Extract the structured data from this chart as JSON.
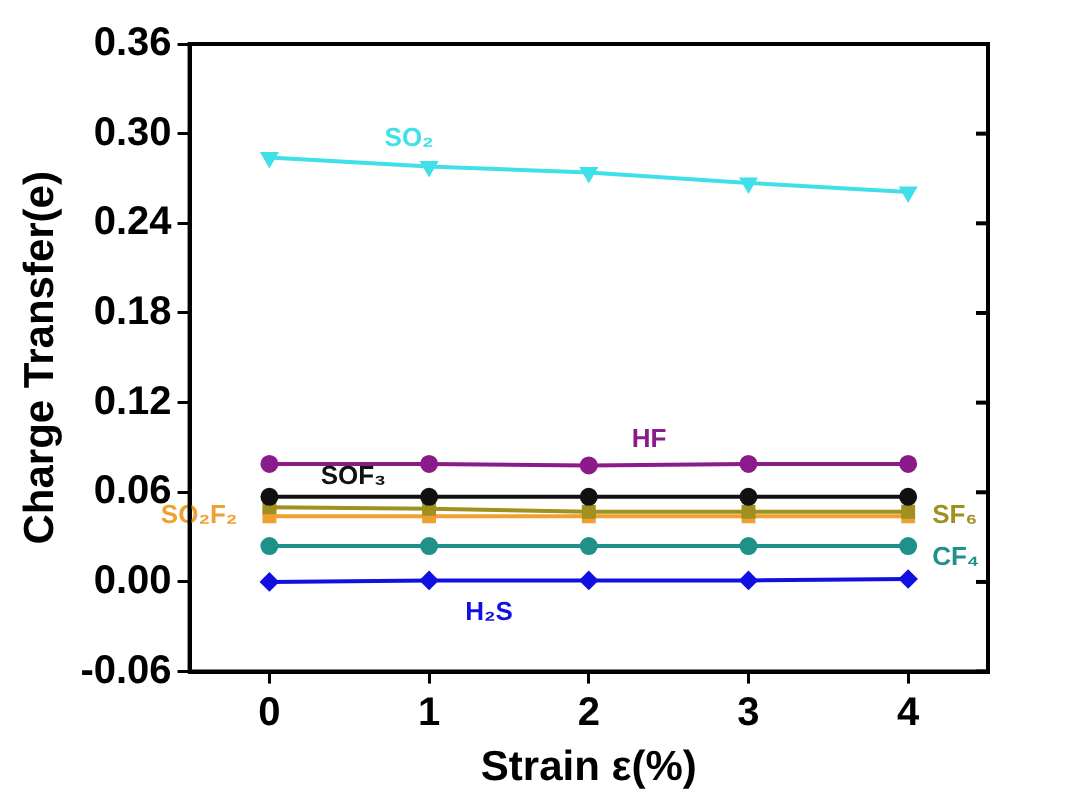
{
  "chart_data": {
    "type": "line",
    "xlabel": "Strain ε(%)",
    "ylabel": "Charge Transfer(e)",
    "x": [
      0,
      1,
      2,
      3,
      4
    ],
    "xlim": [
      -0.5,
      4.5
    ],
    "xticks": [
      0,
      1,
      2,
      3,
      4
    ],
    "ylim": [
      -0.06,
      0.36
    ],
    "yticks": [
      {
        "value": -0.06,
        "label": "-0.06"
      },
      {
        "value": 0,
        "label": "0.00"
      },
      {
        "value": 0.06,
        "label": "0.06"
      },
      {
        "value": 0.12,
        "label": "0.12"
      },
      {
        "value": 0.18,
        "label": "0.18"
      },
      {
        "value": 0.24,
        "label": "0.24"
      },
      {
        "value": 0.3,
        "label": "0.30"
      },
      {
        "value": 0.36,
        "label": "0.36"
      }
    ],
    "grid": false,
    "legend": false,
    "line_style": "solid",
    "series": [
      {
        "name": "SO₂",
        "color": "#40e0e8",
        "marker": "triangle",
        "values": [
          0.284,
          0.278,
          0.274,
          0.267,
          0.261
        ]
      },
      {
        "name": "HF",
        "color": "#8b1a8b",
        "marker": "circle",
        "values": [
          0.079,
          0.079,
          0.078,
          0.079,
          0.079
        ]
      },
      {
        "name": "SOF₃",
        "color": "#111111",
        "marker": "circle",
        "values": [
          0.057,
          0.057,
          0.057,
          0.057,
          0.057
        ]
      },
      {
        "name": "SF₆",
        "color": "#a09020",
        "marker": "square",
        "values": [
          0.05,
          0.049,
          0.047,
          0.047,
          0.047
        ]
      },
      {
        "name": "SO₂F₂",
        "color": "#f0a030",
        "marker": "square",
        "values": [
          0.044,
          0.044,
          0.044,
          0.044,
          0.044
        ]
      },
      {
        "name": "CF₄",
        "color": "#20908a",
        "marker": "circle",
        "values": [
          0.024,
          0.024,
          0.024,
          0.024,
          0.024
        ]
      },
      {
        "name": "H₂S",
        "color": "#1010e0",
        "marker": "diamond",
        "values": [
          0.0,
          0.001,
          0.001,
          0.001,
          0.002
        ]
      }
    ]
  }
}
